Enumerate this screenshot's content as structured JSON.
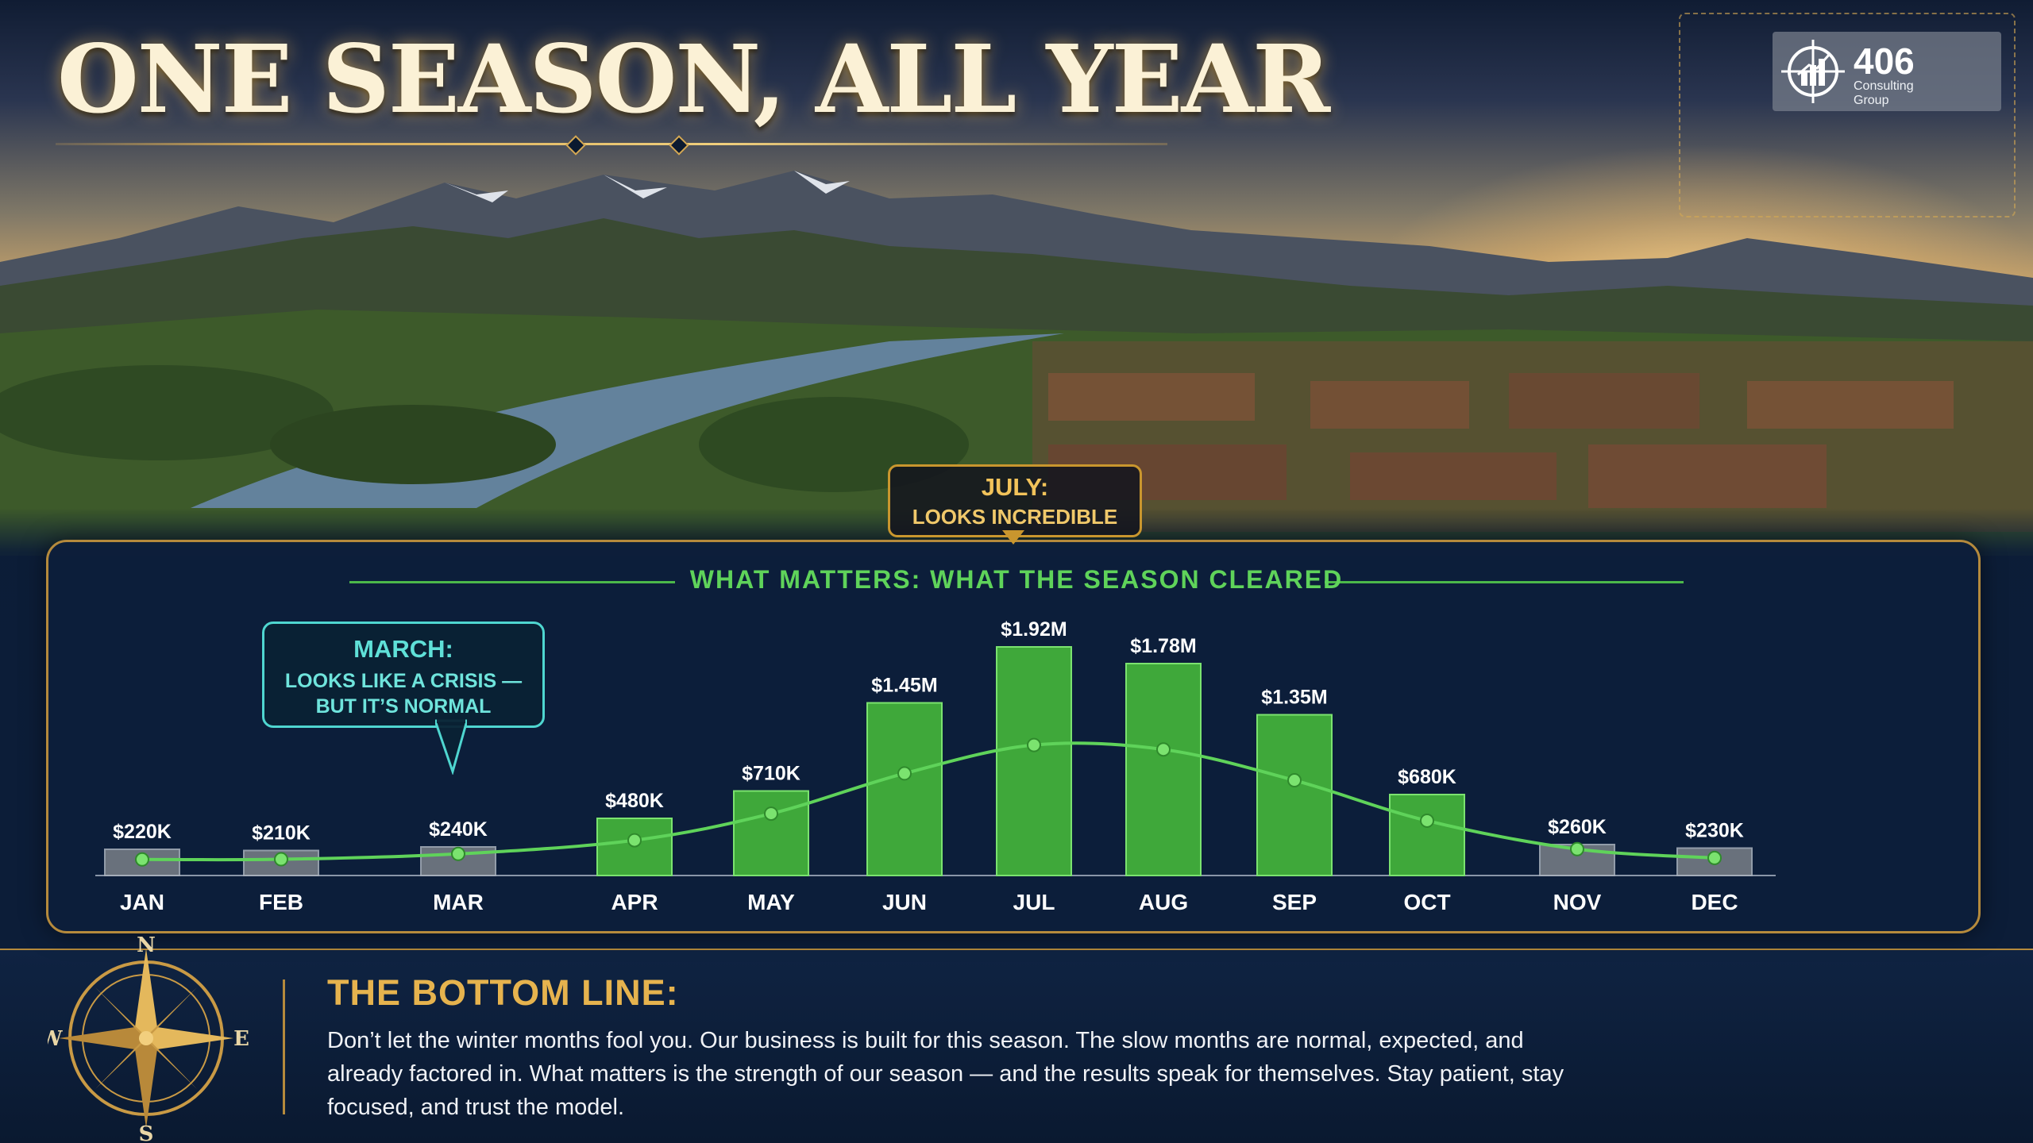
{
  "title": "ONE SEASON, ALL YEAR",
  "logo": {
    "number": "406",
    "subtitle": "Consulting Group"
  },
  "callouts": {
    "july": {
      "line1": "JULY:",
      "line2": "LOOKS INCREDIBLE"
    },
    "march": {
      "line1": "MARCH:",
      "line2": "LOOKS LIKE A CRISIS —",
      "line3": "BUT IT’S NORMAL"
    }
  },
  "bottom_line": {
    "heading": "THE BOTTOM LINE:",
    "body": "Don’t let the winter months fool you. Our business is built for this season. The slow months are normal, expected, and already factored in. What matters is the strength of our season — and the results speak for themselves. Stay patient, stay focused, and trust the model."
  },
  "compass_labels": {
    "n": "N",
    "s": "S",
    "e": "E",
    "w": "W"
  },
  "colors": {
    "peak_bar": "#3fa83a",
    "off_bar": "#7a8088",
    "trend_line": "#5fd35a",
    "gold": "#d4a854",
    "teal": "#4fd6d0"
  },
  "chart_data": {
    "type": "bar",
    "title": "WHAT MATTERS: WHAT THE SEASON CLEARED",
    "categories": [
      "JAN",
      "FEB",
      "MAR",
      "APR",
      "MAY",
      "JUN",
      "JUL",
      "AUG",
      "SEP",
      "OCT",
      "NOV",
      "DEC"
    ],
    "values": [
      220000,
      210000,
      240000,
      480000,
      710000,
      1450000,
      1920000,
      1780000,
      1350000,
      680000,
      260000,
      230000
    ],
    "labels": [
      "$220K",
      "$210K",
      "$240K",
      "$480K",
      "$710K",
      "$1.45M",
      "$1.92M",
      "$1.78M",
      "$1.35M",
      "$680K",
      "$260K",
      "$230K"
    ],
    "peak_season": [
      "APR",
      "MAY",
      "JUN",
      "JUL",
      "AUG",
      "SEP",
      "OCT"
    ],
    "trend_line": "smoothed curve over monthly values",
    "ylim": [
      0,
      2000000
    ],
    "xlabel": "",
    "ylabel": "",
    "grid": false,
    "legend": "none"
  }
}
